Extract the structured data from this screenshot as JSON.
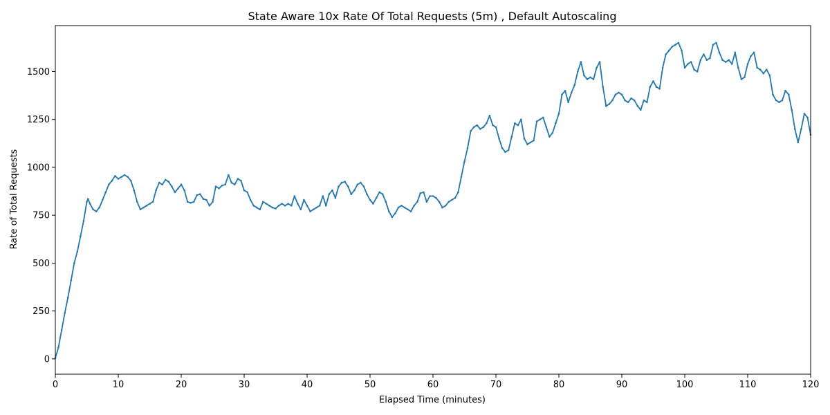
{
  "chart_data": {
    "type": "line",
    "title": "State Aware 10x Rate Of Total Requests (5m) , Default Autoscaling",
    "xlabel": "Elapsed Time (minutes)",
    "ylabel": "Rate of Total Requests",
    "xlim": [
      0,
      120
    ],
    "ylim": [
      -80,
      1740
    ],
    "xticks": [
      0,
      10,
      20,
      30,
      40,
      50,
      60,
      70,
      80,
      90,
      100,
      110,
      120
    ],
    "yticks": [
      0,
      250,
      500,
      750,
      1000,
      1250,
      1500
    ],
    "grid": false,
    "legend": "none",
    "series": [
      {
        "color": "#1f77b4",
        "marker": "dot",
        "points": [
          [
            0,
            5
          ],
          [
            0.5,
            60
          ],
          [
            1,
            150
          ],
          [
            1.5,
            240
          ],
          [
            2,
            320
          ],
          [
            2.5,
            410
          ],
          [
            3,
            500
          ],
          [
            3.5,
            560
          ],
          [
            4,
            640
          ],
          [
            4.5,
            720
          ],
          [
            5,
            820
          ],
          [
            5.2,
            835
          ],
          [
            5.5,
            810
          ],
          [
            6,
            780
          ],
          [
            6.5,
            770
          ],
          [
            7,
            790
          ],
          [
            7.5,
            830
          ],
          [
            8,
            870
          ],
          [
            8.5,
            910
          ],
          [
            9,
            930
          ],
          [
            9.5,
            955
          ],
          [
            10,
            940
          ],
          [
            10.5,
            950
          ],
          [
            11,
            960
          ],
          [
            11.5,
            950
          ],
          [
            12,
            930
          ],
          [
            12.5,
            880
          ],
          [
            13,
            820
          ],
          [
            13.5,
            780
          ],
          [
            14,
            790
          ],
          [
            14.5,
            800
          ],
          [
            15,
            810
          ],
          [
            15.5,
            820
          ],
          [
            16,
            880
          ],
          [
            16.5,
            920
          ],
          [
            17,
            910
          ],
          [
            17.5,
            935
          ],
          [
            18,
            925
          ],
          [
            18.5,
            900
          ],
          [
            19,
            870
          ],
          [
            19.5,
            890
          ],
          [
            20,
            910
          ],
          [
            20.5,
            880
          ],
          [
            21,
            820
          ],
          [
            21.5,
            815
          ],
          [
            22,
            820
          ],
          [
            22.5,
            855
          ],
          [
            23,
            860
          ],
          [
            23.5,
            835
          ],
          [
            24,
            830
          ],
          [
            24.5,
            800
          ],
          [
            25,
            820
          ],
          [
            25.5,
            900
          ],
          [
            26,
            890
          ],
          [
            26.5,
            905
          ],
          [
            27,
            910
          ],
          [
            27.5,
            960
          ],
          [
            28,
            920
          ],
          [
            28.5,
            910
          ],
          [
            29,
            940
          ],
          [
            29.5,
            930
          ],
          [
            30,
            880
          ],
          [
            30.5,
            870
          ],
          [
            31,
            830
          ],
          [
            31.5,
            800
          ],
          [
            32,
            790
          ],
          [
            32.5,
            780
          ],
          [
            33,
            820
          ],
          [
            33.5,
            810
          ],
          [
            34,
            800
          ],
          [
            34.5,
            790
          ],
          [
            35,
            785
          ],
          [
            35.5,
            800
          ],
          [
            36,
            810
          ],
          [
            36.5,
            800
          ],
          [
            37,
            810
          ],
          [
            37.5,
            800
          ],
          [
            38,
            850
          ],
          [
            38.5,
            810
          ],
          [
            39,
            780
          ],
          [
            39.5,
            830
          ],
          [
            40,
            800
          ],
          [
            40.5,
            770
          ],
          [
            41,
            780
          ],
          [
            41.5,
            790
          ],
          [
            42,
            800
          ],
          [
            42.5,
            850
          ],
          [
            43,
            800
          ],
          [
            43.5,
            860
          ],
          [
            44,
            880
          ],
          [
            44.5,
            840
          ],
          [
            45,
            900
          ],
          [
            45.5,
            920
          ],
          [
            46,
            925
          ],
          [
            46.5,
            900
          ],
          [
            47,
            860
          ],
          [
            47.5,
            880
          ],
          [
            48,
            910
          ],
          [
            48.5,
            920
          ],
          [
            49,
            900
          ],
          [
            49.5,
            860
          ],
          [
            50,
            830
          ],
          [
            50.5,
            810
          ],
          [
            51,
            840
          ],
          [
            51.5,
            870
          ],
          [
            52,
            860
          ],
          [
            52.5,
            820
          ],
          [
            53,
            770
          ],
          [
            53.5,
            740
          ],
          [
            54,
            760
          ],
          [
            54.5,
            790
          ],
          [
            55,
            800
          ],
          [
            55.5,
            790
          ],
          [
            56,
            780
          ],
          [
            56.5,
            770
          ],
          [
            57,
            800
          ],
          [
            57.5,
            820
          ],
          [
            58,
            865
          ],
          [
            58.5,
            870
          ],
          [
            59,
            820
          ],
          [
            59.5,
            850
          ],
          [
            60,
            850
          ],
          [
            60.5,
            840
          ],
          [
            61,
            820
          ],
          [
            61.5,
            790
          ],
          [
            62,
            800
          ],
          [
            62.5,
            820
          ],
          [
            63,
            830
          ],
          [
            63.5,
            840
          ],
          [
            64,
            870
          ],
          [
            64.5,
            950
          ],
          [
            65,
            1030
          ],
          [
            65.5,
            1100
          ],
          [
            66,
            1190
          ],
          [
            66.5,
            1210
          ],
          [
            67,
            1220
          ],
          [
            67.5,
            1200
          ],
          [
            68,
            1210
          ],
          [
            68.5,
            1230
          ],
          [
            69,
            1270
          ],
          [
            69.5,
            1220
          ],
          [
            70,
            1210
          ],
          [
            70.5,
            1150
          ],
          [
            71,
            1100
          ],
          [
            71.5,
            1080
          ],
          [
            72,
            1090
          ],
          [
            72.5,
            1160
          ],
          [
            73,
            1230
          ],
          [
            73.5,
            1220
          ],
          [
            74,
            1250
          ],
          [
            74.5,
            1150
          ],
          [
            75,
            1120
          ],
          [
            75.5,
            1130
          ],
          [
            76,
            1140
          ],
          [
            76.5,
            1240
          ],
          [
            77,
            1250
          ],
          [
            77.5,
            1260
          ],
          [
            78,
            1210
          ],
          [
            78.5,
            1160
          ],
          [
            79,
            1180
          ],
          [
            79.5,
            1230
          ],
          [
            80,
            1280
          ],
          [
            80.5,
            1380
          ],
          [
            81,
            1400
          ],
          [
            81.5,
            1340
          ],
          [
            82,
            1390
          ],
          [
            82.5,
            1430
          ],
          [
            83,
            1500
          ],
          [
            83.5,
            1550
          ],
          [
            84,
            1480
          ],
          [
            84.5,
            1460
          ],
          [
            85,
            1470
          ],
          [
            85.5,
            1460
          ],
          [
            86,
            1520
          ],
          [
            86.5,
            1550
          ],
          [
            87,
            1420
          ],
          [
            87.5,
            1320
          ],
          [
            88,
            1330
          ],
          [
            88.5,
            1350
          ],
          [
            89,
            1380
          ],
          [
            89.5,
            1390
          ],
          [
            90,
            1380
          ],
          [
            90.5,
            1350
          ],
          [
            91,
            1340
          ],
          [
            91.5,
            1360
          ],
          [
            92,
            1350
          ],
          [
            92.5,
            1320
          ],
          [
            93,
            1300
          ],
          [
            93.5,
            1350
          ],
          [
            94,
            1340
          ],
          [
            94.5,
            1420
          ],
          [
            95,
            1450
          ],
          [
            95.5,
            1420
          ],
          [
            96,
            1410
          ],
          [
            96.5,
            1520
          ],
          [
            97,
            1590
          ],
          [
            97.5,
            1610
          ],
          [
            98,
            1630
          ],
          [
            98.5,
            1640
          ],
          [
            99,
            1650
          ],
          [
            99.5,
            1610
          ],
          [
            100,
            1520
          ],
          [
            100.5,
            1540
          ],
          [
            101,
            1550
          ],
          [
            101.5,
            1510
          ],
          [
            102,
            1500
          ],
          [
            102.5,
            1560
          ],
          [
            103,
            1590
          ],
          [
            103.5,
            1560
          ],
          [
            104,
            1570
          ],
          [
            104.5,
            1640
          ],
          [
            105,
            1650
          ],
          [
            105.5,
            1600
          ],
          [
            106,
            1560
          ],
          [
            106.5,
            1550
          ],
          [
            107,
            1560
          ],
          [
            107.5,
            1540
          ],
          [
            108,
            1600
          ],
          [
            108.5,
            1520
          ],
          [
            109,
            1460
          ],
          [
            109.5,
            1470
          ],
          [
            110,
            1540
          ],
          [
            110.5,
            1580
          ],
          [
            111,
            1600
          ],
          [
            111.5,
            1520
          ],
          [
            112,
            1510
          ],
          [
            112.5,
            1490
          ],
          [
            113,
            1510
          ],
          [
            113.5,
            1480
          ],
          [
            114,
            1380
          ],
          [
            114.5,
            1350
          ],
          [
            115,
            1340
          ],
          [
            115.5,
            1350
          ],
          [
            116,
            1400
          ],
          [
            116.5,
            1380
          ],
          [
            117,
            1300
          ],
          [
            117.5,
            1200
          ],
          [
            118,
            1130
          ],
          [
            118.5,
            1200
          ],
          [
            119,
            1280
          ],
          [
            119.5,
            1260
          ],
          [
            120,
            1170
          ]
        ]
      }
    ]
  }
}
